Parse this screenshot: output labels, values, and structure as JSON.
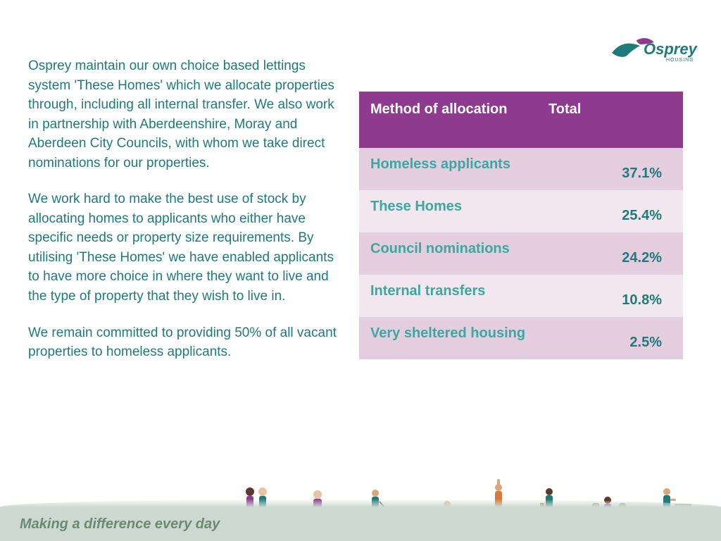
{
  "logo": {
    "brand": "Osprey",
    "subtitle": "HOUSING",
    "bird_color": "#1f7a7a",
    "swoosh_color": "#8e3a8e"
  },
  "paragraphs": [
    "Osprey maintain our own choice based lettings system 'These Homes' which we allocate properties through, including all internal transfer. We also work in partnership with Aberdeenshire, Moray and Aberdeen City Councils, with whom we take direct nominations for our properties.",
    "We work hard to make the best use of stock by allocating homes to applicants who either have specific needs or property size requirements. By utilising 'These Homes' we have enabled applicants to have more choice in where they want to live and the type of property that they wish to live in.",
    "We remain committed to providing 50% of all vacant properties to homeless applicants."
  ],
  "table": {
    "header_bg": "#8e3a8e",
    "odd_bg": "#e5cde0",
    "even_bg": "#f2e6ef",
    "label_color": "#3aa9a0",
    "value_color": "#1f7a7a",
    "columns": [
      "Method of allocation",
      "Total"
    ],
    "rows": [
      {
        "label": "Homeless applicants",
        "value": "37.1%"
      },
      {
        "label": "These Homes",
        "value": "25.4%"
      },
      {
        "label": "Council nominations",
        "value": "24.2%"
      },
      {
        "label": "Internal transfers",
        "value": "10.8%"
      },
      {
        "label": "Very sheltered housing",
        "value": "2.5%"
      }
    ]
  },
  "footer": {
    "tagline": "Making a difference every day",
    "bg_color": "#cdd9d0",
    "text_color": "#6b8a72"
  },
  "people_colors": {
    "skin1": "#d9a77a",
    "skin2": "#5c3a2e",
    "skin3": "#e8c4a0",
    "purple": "#8e3a8e",
    "teal": "#1f7a7a",
    "grey": "#888888",
    "dark": "#333333",
    "red": "#c44",
    "orange": "#d97a3a"
  }
}
